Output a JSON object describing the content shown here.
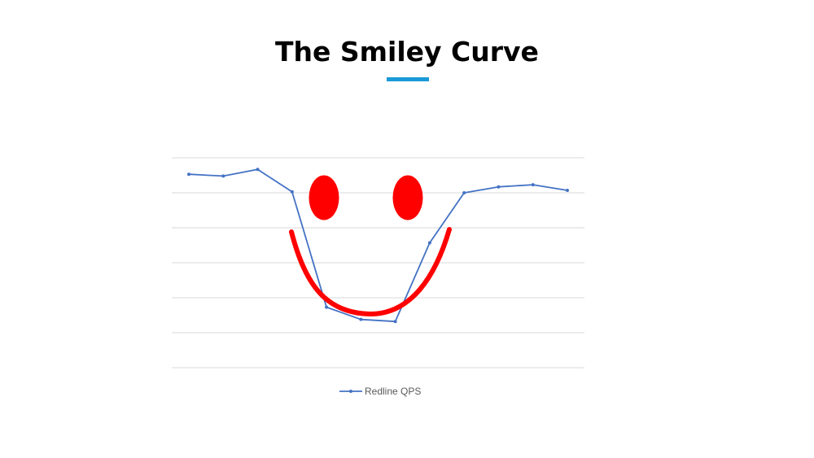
{
  "slide": {
    "title": "The Smiley Curve",
    "accent_color": "#1a9ad6"
  },
  "chart_data": {
    "type": "line",
    "title": "",
    "xlabel": "",
    "ylabel": "",
    "x": [
      1,
      2,
      3,
      4,
      5,
      6,
      7,
      8,
      9,
      10,
      11,
      12
    ],
    "ylim": [
      0,
      6
    ],
    "grid": true,
    "series": [
      {
        "name": "Redline QPS",
        "color": "#4472c4",
        "values": [
          5.53,
          5.48,
          5.67,
          5.03,
          1.73,
          1.38,
          1.32,
          3.57,
          5.0,
          5.17,
          5.23,
          5.07
        ]
      }
    ],
    "legend": {
      "position": "bottom"
    },
    "annotations": {
      "drawing_color": "#ff0000",
      "shapes": [
        "left-eye",
        "right-eye",
        "smile-curve"
      ]
    }
  }
}
